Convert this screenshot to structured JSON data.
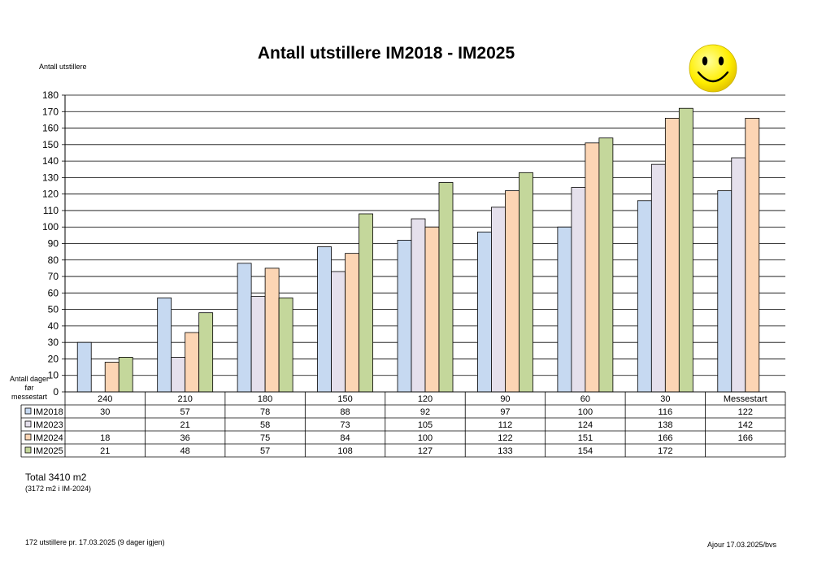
{
  "chart_data": {
    "type": "bar",
    "title": "Antall utstillere IM2018 - IM2025",
    "ylabel": "Antall utstillere",
    "xlabel": "Antall dager før messestart",
    "ylim": [
      0,
      180
    ],
    "ytick_step": 10,
    "grid": true,
    "categories": [
      "240",
      "210",
      "180",
      "150",
      "120",
      "90",
      "60",
      "30",
      "Messestart"
    ],
    "series": [
      {
        "name": "IM2018",
        "color": "#c6d9f1",
        "values": [
          30,
          57,
          78,
          88,
          92,
          97,
          100,
          116,
          122
        ]
      },
      {
        "name": "IM2023",
        "color": "#e5e0ec",
        "values": [
          null,
          21,
          58,
          73,
          105,
          112,
          124,
          138,
          142
        ]
      },
      {
        "name": "IM2024",
        "color": "#fcd5b4",
        "values": [
          18,
          36,
          75,
          84,
          100,
          122,
          151,
          166,
          166
        ]
      },
      {
        "name": "IM2025",
        "color": "#c4d79b",
        "values": [
          21,
          48,
          57,
          108,
          127,
          133,
          154,
          172,
          null
        ]
      }
    ]
  },
  "notes": {
    "total": "Total 3410 m2",
    "total_prev": "(3172 m2 i IM-2024)",
    "footer_left": "172 utstillere pr. 17.03.2025 (9 dager igjen)",
    "footer_right": "Ajour  17.03.2025/bvs"
  },
  "icons": {
    "corner": "smiley-face-icon"
  }
}
